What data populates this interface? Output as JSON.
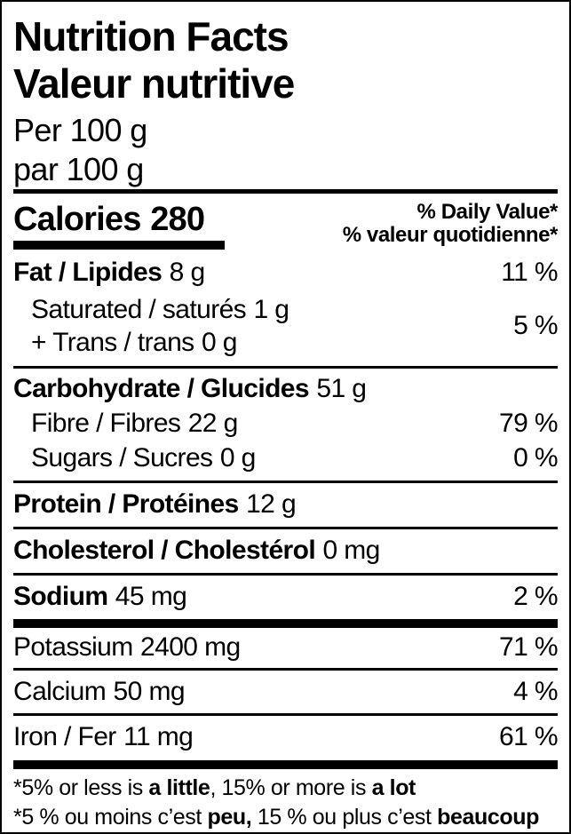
{
  "title": {
    "en": "Nutrition Facts",
    "fr": "Valeur nutritive"
  },
  "serving": {
    "en": "Per 100 g",
    "fr": "par 100 g"
  },
  "calories": {
    "label": "Calories",
    "value": "280"
  },
  "daily_value_header": {
    "en": "% Daily Value*",
    "fr": "% valeur quotidienne*"
  },
  "nutrients": {
    "fat": {
      "name": "Fat / Lipides",
      "amount": "8 g",
      "dv": "11 %"
    },
    "saturated": {
      "name": "Saturated / saturés",
      "amount": "1 g"
    },
    "trans": {
      "name": "+ Trans / trans",
      "amount": "0 g"
    },
    "saturated_trans_dv": "5 %",
    "carbohydrate": {
      "name": "Carbohydrate / Glucides",
      "amount": "51 g"
    },
    "fibre": {
      "name": "Fibre / Fibres",
      "amount": "22 g",
      "dv": "79 %"
    },
    "sugars": {
      "name": "Sugars / Sucres",
      "amount": "0 g",
      "dv": "0 %"
    },
    "protein": {
      "name": "Protein / Protéines",
      "amount": "12 g"
    },
    "cholesterol": {
      "name": "Cholesterol / Cholestérol",
      "amount": "0 mg"
    },
    "sodium": {
      "name": "Sodium",
      "amount": "45 mg",
      "dv": "2 %"
    },
    "potassium": {
      "name": "Potassium",
      "amount": "2400 mg",
      "dv": "71 %"
    },
    "calcium": {
      "name": "Calcium",
      "amount": "50 mg",
      "dv": "4 %"
    },
    "iron": {
      "name": "Iron / Fer",
      "amount": "11 mg",
      "dv": "61 %"
    }
  },
  "footnotes": {
    "en": {
      "part1": "*5% or less is ",
      "bold1": "a little",
      "part2": ", 15% or more is ",
      "bold2": "a lot"
    },
    "fr": {
      "part1": "*5 % ou moins c’est ",
      "bold1": "peu,",
      "part2": " 15 % ou plus c’est ",
      "bold2": "beaucoup"
    }
  },
  "colors": {
    "text": "#000000",
    "background": "#ffffff",
    "border": "#000000"
  }
}
